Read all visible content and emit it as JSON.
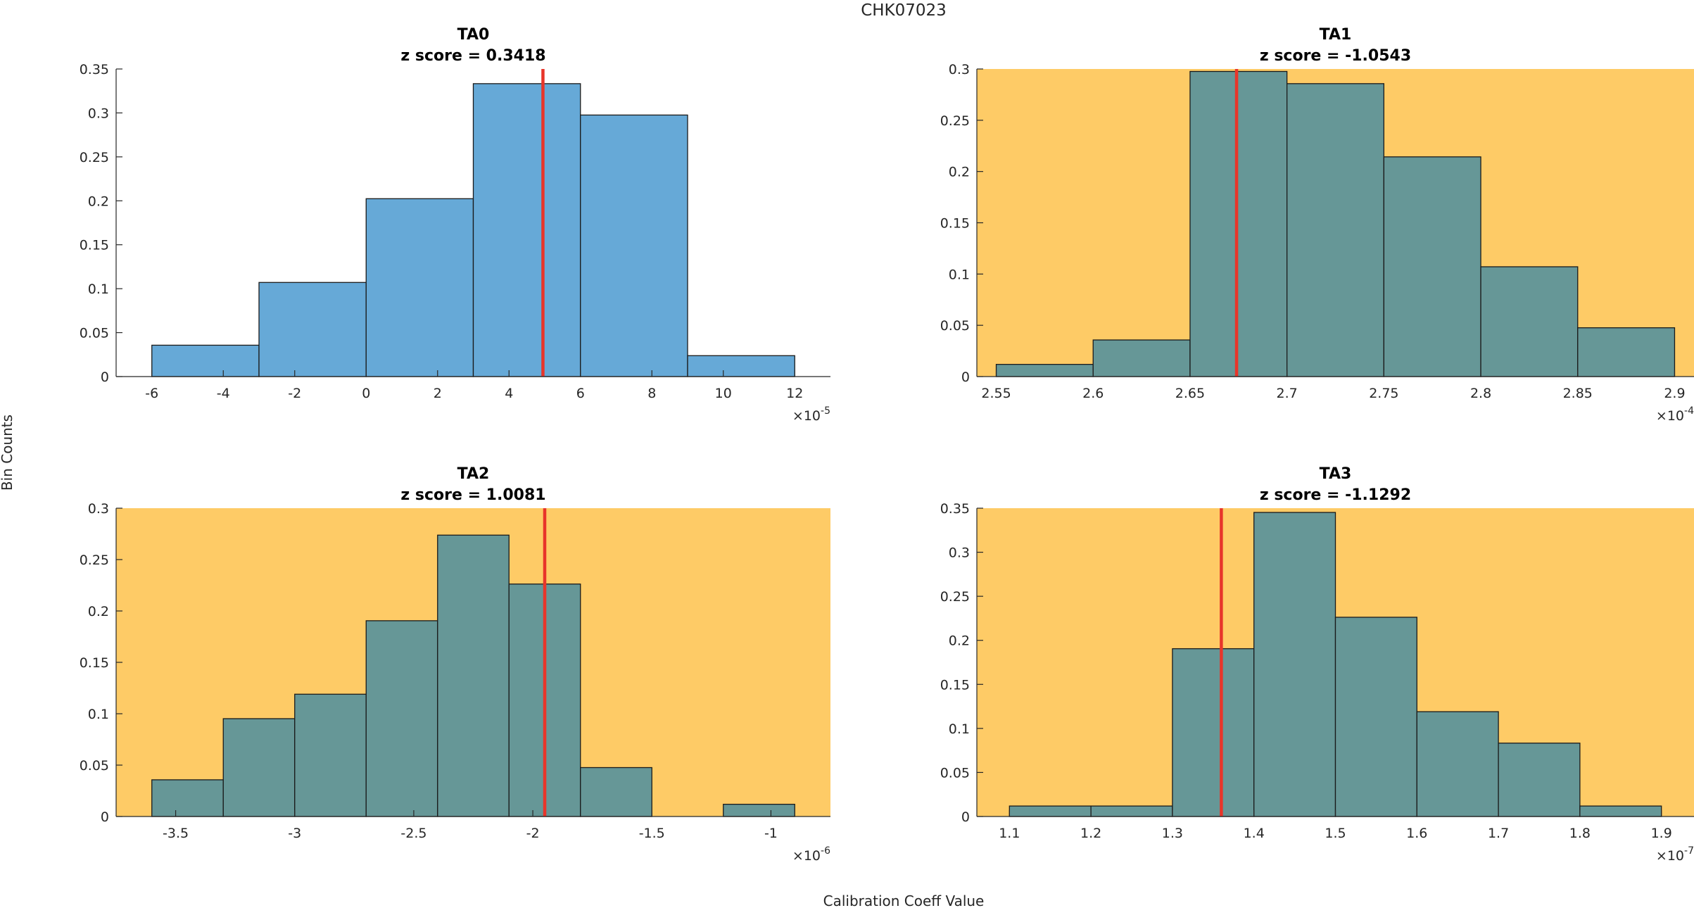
{
  "figure": {
    "suptitle": "CHK07023",
    "xlabel": "Calibration Coeff Value",
    "ylabel": "Bin Counts"
  },
  "colors": {
    "bar_normal": "#66a9d7",
    "bar_flagged": "#669797",
    "bg_flagged": "#fecb66",
    "marker": "#e8352a",
    "edge": "#1a1a1a"
  },
  "chart_data": [
    {
      "type": "bar",
      "name": "TA0",
      "title": "TA0",
      "subtitle": "z score = 0.3418",
      "flagged": false,
      "bin_edges": [
        -6,
        -3,
        0,
        3,
        6,
        9,
        12
      ],
      "values": [
        0.0357,
        0.1071,
        0.2024,
        0.3333,
        0.2976,
        0.0238
      ],
      "marker_x": 4.95,
      "xlim": [
        -7,
        13
      ],
      "ylim": [
        0,
        0.35
      ],
      "xticks": [
        -6,
        -4,
        -2,
        0,
        2,
        4,
        6,
        8,
        10,
        12
      ],
      "xtick_labels": [
        "-6",
        "-4",
        "-2",
        "0",
        "2",
        "4",
        "6",
        "8",
        "10",
        "12"
      ],
      "yticks": [
        0,
        0.05,
        0.1,
        0.15,
        0.2,
        0.25,
        0.3,
        0.35
      ],
      "ytick_labels": [
        "0",
        "0.05",
        "0.1",
        "0.15",
        "0.2",
        "0.25",
        "0.3",
        "0.35"
      ],
      "exponent_base": "×10",
      "exponent": "-5"
    },
    {
      "type": "bar",
      "name": "TA1",
      "title": "TA1",
      "subtitle": "z score = -1.0543",
      "flagged": true,
      "bin_edges": [
        2.55,
        2.6,
        2.65,
        2.7,
        2.75,
        2.8,
        2.85,
        2.9
      ],
      "values": [
        0.0119,
        0.0357,
        0.2976,
        0.2857,
        0.2143,
        0.1071,
        0.0476
      ],
      "marker_x": 2.674,
      "xlim": [
        2.54,
        2.91
      ],
      "ylim": [
        0,
        0.3
      ],
      "xticks": [
        2.55,
        2.6,
        2.65,
        2.7,
        2.75,
        2.8,
        2.85,
        2.9
      ],
      "xtick_labels": [
        "2.55",
        "2.6",
        "2.65",
        "2.7",
        "2.75",
        "2.8",
        "2.85",
        "2.9"
      ],
      "yticks": [
        0,
        0.05,
        0.1,
        0.15,
        0.2,
        0.25,
        0.3
      ],
      "ytick_labels": [
        "0",
        "0.05",
        "0.1",
        "0.15",
        "0.2",
        "0.25",
        "0.3"
      ],
      "exponent_base": "×10",
      "exponent": "-4"
    },
    {
      "type": "bar",
      "name": "TA2",
      "title": "TA2",
      "subtitle": "z score = 1.0081",
      "flagged": true,
      "bin_edges": [
        -3.6,
        -3.3,
        -3.0,
        -2.7,
        -2.4,
        -2.1,
        -1.8,
        -1.5,
        -1.2,
        -0.9
      ],
      "values": [
        0.0357,
        0.0952,
        0.119,
        0.1905,
        0.2738,
        0.2262,
        0.0476,
        0,
        0.0119
      ],
      "marker_x": -1.95,
      "xlim": [
        -3.75,
        -0.75
      ],
      "ylim": [
        0,
        0.3
      ],
      "xticks": [
        -3.5,
        -3,
        -2.5,
        -2,
        -1.5,
        -1
      ],
      "xtick_labels": [
        "-3.5",
        "-3",
        "-2.5",
        "-2",
        "-1.5",
        "-1"
      ],
      "yticks": [
        0,
        0.05,
        0.1,
        0.15,
        0.2,
        0.25,
        0.3
      ],
      "ytick_labels": [
        "0",
        "0.05",
        "0.1",
        "0.15",
        "0.2",
        "0.25",
        "0.3"
      ],
      "exponent_base": "×10",
      "exponent": "-6"
    },
    {
      "type": "bar",
      "name": "TA3",
      "title": "TA3",
      "subtitle": "z score = -1.1292",
      "flagged": true,
      "bin_edges": [
        1.1,
        1.2,
        1.3,
        1.4,
        1.5,
        1.6,
        1.7,
        1.8,
        1.9
      ],
      "values": [
        0.0119,
        0.0119,
        0.1905,
        0.3452,
        0.2262,
        0.119,
        0.0833,
        0.0119
      ],
      "marker_x": 1.36,
      "xlim": [
        1.06,
        1.94
      ],
      "ylim": [
        0,
        0.35
      ],
      "xticks": [
        1.1,
        1.2,
        1.3,
        1.4,
        1.5,
        1.6,
        1.7,
        1.8,
        1.9
      ],
      "xtick_labels": [
        "1.1",
        "1.2",
        "1.3",
        "1.4",
        "1.5",
        "1.6",
        "1.7",
        "1.8",
        "1.9"
      ],
      "yticks": [
        0,
        0.05,
        0.1,
        0.15,
        0.2,
        0.25,
        0.3,
        0.35
      ],
      "ytick_labels": [
        "0",
        "0.05",
        "0.1",
        "0.15",
        "0.2",
        "0.25",
        "0.3",
        "0.35"
      ],
      "exponent_base": "×10",
      "exponent": "-7"
    }
  ]
}
